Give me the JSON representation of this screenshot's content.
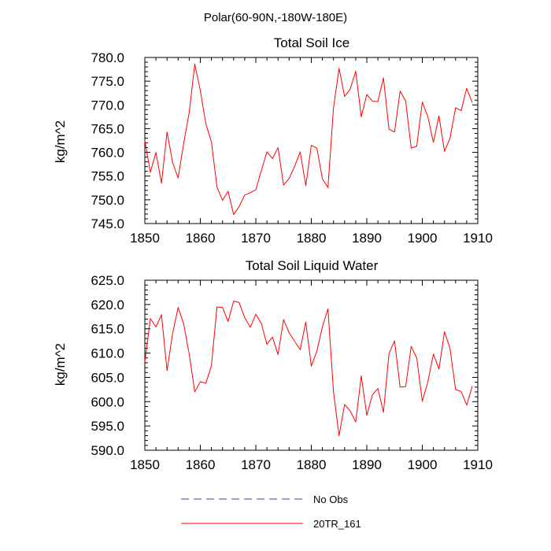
{
  "suptitle": "Polar(60-90N,-180W-180E)",
  "chart_data": [
    {
      "type": "line",
      "title": "Total Soil Ice",
      "ylabel": "kg/m^2",
      "xlim": [
        1850,
        1910
      ],
      "ylim": [
        745,
        780
      ],
      "xticks": [
        1850,
        1860,
        1870,
        1880,
        1890,
        1900,
        1910
      ],
      "xtick_labels": [
        "1850",
        "1860",
        "1870",
        "1880",
        "1890",
        "1900",
        "1910"
      ],
      "yticks": [
        745,
        750,
        755,
        760,
        765,
        770,
        775,
        780
      ],
      "ytick_labels": [
        "745.0",
        "750.0",
        "755.0",
        "760.0",
        "765.0",
        "770.0",
        "775.0",
        "780.0"
      ],
      "x": [
        1850,
        1851,
        1852,
        1853,
        1854,
        1855,
        1856,
        1857,
        1858,
        1859,
        1860,
        1861,
        1862,
        1863,
        1864,
        1865,
        1866,
        1867,
        1868,
        1869,
        1870,
        1871,
        1872,
        1873,
        1874,
        1875,
        1876,
        1877,
        1878,
        1879,
        1880,
        1881,
        1882,
        1883,
        1884,
        1885,
        1886,
        1887,
        1888,
        1889,
        1890,
        1891,
        1892,
        1893,
        1894,
        1895,
        1896,
        1897,
        1898,
        1899,
        1900,
        1901,
        1902,
        1903,
        1904,
        1905,
        1906,
        1907,
        1908,
        1909
      ],
      "series": [
        {
          "name": "20TR_161",
          "color": "#ff0000",
          "values": [
            762.5,
            755.8,
            760.0,
            753.5,
            764.3,
            757.9,
            754.6,
            761.9,
            768.4,
            778.6,
            773.0,
            766.0,
            762.2,
            752.7,
            749.9,
            751.8,
            746.9,
            748.6,
            751.0,
            751.5,
            752.1,
            756.2,
            760.1,
            758.7,
            761.0,
            753.1,
            754.5,
            757.1,
            760.1,
            753.0,
            761.5,
            760.9,
            754.4,
            752.6,
            769.4,
            777.7,
            771.8,
            773.3,
            777.1,
            767.5,
            772.2,
            770.8,
            770.7,
            775.7,
            764.9,
            764.3,
            772.9,
            770.8,
            760.9,
            761.3,
            770.6,
            767.5,
            762.1,
            767.7,
            760.2,
            763.0,
            769.4,
            768.8,
            773.5,
            770.5
          ]
        }
      ]
    },
    {
      "type": "line",
      "title": "Total Soil Liquid Water",
      "ylabel": "kg/m^2",
      "xlim": [
        1850,
        1910
      ],
      "ylim": [
        590,
        625
      ],
      "xticks": [
        1850,
        1860,
        1870,
        1880,
        1890,
        1900,
        1910
      ],
      "xtick_labels": [
        "1850",
        "1860",
        "1870",
        "1880",
        "1890",
        "1900",
        "1910"
      ],
      "yticks": [
        590,
        595,
        600,
        605,
        610,
        615,
        620,
        625
      ],
      "ytick_labels": [
        "590.0",
        "595.0",
        "600.0",
        "605.0",
        "610.0",
        "615.0",
        "620.0",
        "625.0"
      ],
      "x": [
        1850,
        1851,
        1852,
        1853,
        1854,
        1855,
        1856,
        1857,
        1858,
        1859,
        1860,
        1861,
        1862,
        1863,
        1864,
        1865,
        1866,
        1867,
        1868,
        1869,
        1870,
        1871,
        1872,
        1873,
        1874,
        1875,
        1876,
        1877,
        1878,
        1879,
        1880,
        1881,
        1882,
        1883,
        1884,
        1885,
        1886,
        1887,
        1888,
        1889,
        1890,
        1891,
        1892,
        1893,
        1894,
        1895,
        1896,
        1897,
        1898,
        1899,
        1900,
        1901,
        1902,
        1903,
        1904,
        1905,
        1906,
        1907,
        1908,
        1909
      ],
      "series": [
        {
          "name": "20TR_161",
          "color": "#ff0000",
          "values": [
            608.2,
            617.1,
            615.4,
            617.9,
            606.4,
            614.0,
            619.4,
            616.0,
            609.8,
            602.0,
            604.1,
            603.8,
            607.4,
            619.5,
            619.4,
            616.5,
            620.7,
            620.4,
            617.3,
            615.3,
            618.0,
            616.1,
            611.8,
            613.3,
            609.7,
            616.9,
            614.2,
            612.4,
            610.7,
            616.4,
            607.3,
            610.4,
            615.4,
            619.1,
            602.0,
            593.0,
            599.4,
            598.1,
            595.8,
            605.3,
            597.2,
            601.4,
            602.7,
            597.8,
            609.9,
            612.5,
            603.0,
            603.1,
            611.4,
            609.0,
            600.1,
            604.1,
            609.8,
            606.7,
            614.4,
            610.9,
            602.5,
            602.1,
            599.3,
            603.2
          ]
        }
      ]
    }
  ],
  "legend": [
    {
      "label": "No Obs",
      "color": "#3b3bb5",
      "style": "dashed"
    },
    {
      "label": "20TR_161",
      "color": "#ff0000",
      "style": "solid"
    }
  ]
}
